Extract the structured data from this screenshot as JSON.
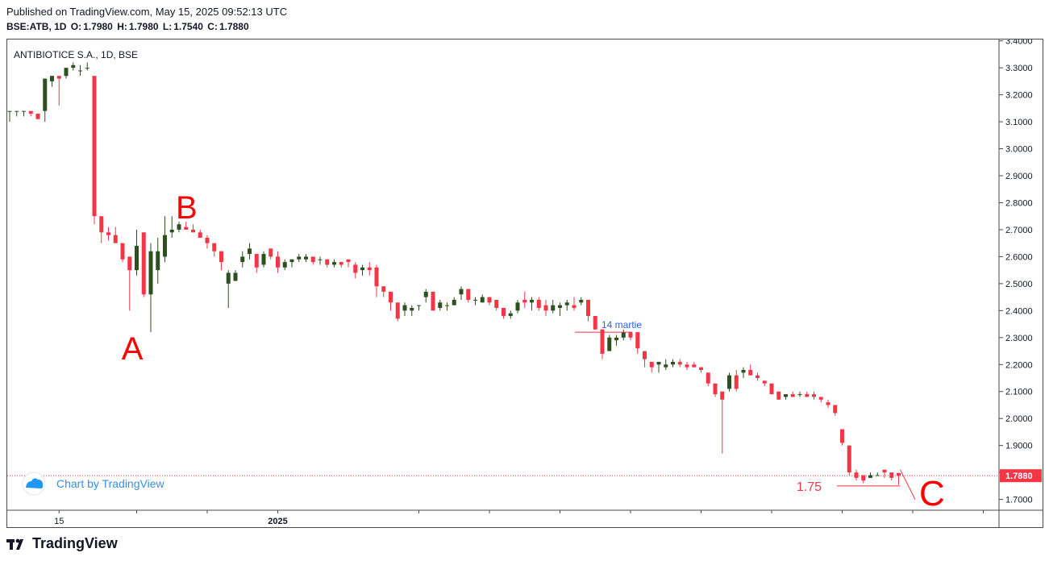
{
  "header": {
    "published": "Published on TradingView.com, May 15, 2025 09:52:13 UTC",
    "ohlc": {
      "symbol": "BSE:ATB, 1D",
      "open_label": "O:",
      "open": "1.7980",
      "high_label": "H:",
      "high": "1.7980",
      "low_label": "L:",
      "low": "1.7540",
      "close_label": "C:",
      "close": "1.7880"
    }
  },
  "chart_title": "ANTIBIOTICE S.A., 1D, BSE",
  "watermark": "Chart by TradingView",
  "footer_brand": "TradingView",
  "colors": {
    "up": "#2e4f1f",
    "down": "#f23645",
    "grid": "#b0b0b0",
    "last_price": "#f23645",
    "annotation_blue": "#2962ff",
    "annotation_red": "#ff0000"
  },
  "chart_data": {
    "type": "candlestick",
    "ylim": [
      1.66,
      3.405
    ],
    "y_ticks": [
      "1.7000",
      "1.8000",
      "1.9000",
      "2.0000",
      "2.1000",
      "2.2000",
      "2.3000",
      "2.4000",
      "2.5000",
      "2.6000",
      "2.7000",
      "2.8000",
      "2.9000",
      "3.0000",
      "3.1000",
      "3.2000",
      "3.3000",
      "3.4000"
    ],
    "x_ticks": [
      {
        "label": "15",
        "bar": 7
      },
      {
        "label": "",
        "bar": 18
      },
      {
        "label": "",
        "bar": 28
      },
      {
        "label": "2025",
        "bar": 38
      },
      {
        "label": "",
        "bar": 58
      },
      {
        "label": "",
        "bar": 68
      },
      {
        "label": "",
        "bar": 78
      },
      {
        "label": "",
        "bar": 88
      },
      {
        "label": "",
        "bar": 98
      },
      {
        "label": "",
        "bar": 108
      },
      {
        "label": "",
        "bar": 118
      },
      {
        "label": "",
        "bar": 128
      },
      {
        "label": "",
        "bar": 138
      }
    ],
    "last_price": 1.788,
    "last_price_label": "1.7880",
    "candles": [
      [
        3.14,
        3.14,
        3.1,
        3.14
      ],
      [
        3.14,
        3.14,
        3.12,
        3.14
      ],
      [
        3.14,
        3.14,
        3.12,
        3.14
      ],
      [
        3.14,
        3.14,
        3.12,
        3.13
      ],
      [
        3.13,
        3.13,
        3.11,
        3.11
      ],
      [
        3.14,
        3.26,
        3.1,
        3.26
      ],
      [
        3.25,
        3.27,
        3.23,
        3.27
      ],
      [
        3.27,
        3.27,
        3.16,
        3.26
      ],
      [
        3.27,
        3.3,
        3.26,
        3.3
      ],
      [
        3.3,
        3.32,
        3.29,
        3.31
      ],
      [
        3.29,
        3.31,
        3.27,
        3.29
      ],
      [
        3.3,
        3.32,
        3.29,
        3.3
      ],
      [
        3.27,
        3.27,
        2.72,
        2.75
      ],
      [
        2.75,
        2.75,
        2.65,
        2.69
      ],
      [
        2.69,
        2.71,
        2.66,
        2.68
      ],
      [
        2.68,
        2.71,
        2.66,
        2.65
      ],
      [
        2.65,
        2.65,
        2.58,
        2.59
      ],
      [
        2.6,
        2.6,
        2.4,
        2.55
      ],
      [
        2.55,
        2.7,
        2.53,
        2.64
      ],
      [
        2.69,
        2.69,
        2.45,
        2.46
      ],
      [
        2.46,
        2.65,
        2.32,
        2.62
      ],
      [
        2.55,
        2.67,
        2.5,
        2.62
      ],
      [
        2.6,
        2.75,
        2.58,
        2.68
      ],
      [
        2.69,
        2.75,
        2.67,
        2.7
      ],
      [
        2.7,
        2.73,
        2.69,
        2.72
      ],
      [
        2.71,
        2.73,
        2.7,
        2.7
      ],
      [
        2.7,
        2.72,
        2.69,
        2.69
      ],
      [
        2.69,
        2.7,
        2.67,
        2.67
      ],
      [
        2.67,
        2.68,
        2.63,
        2.65
      ],
      [
        2.65,
        2.65,
        2.6,
        2.62
      ],
      [
        2.62,
        2.62,
        2.55,
        2.58
      ],
      [
        2.5,
        2.55,
        2.41,
        2.54
      ],
      [
        2.51,
        2.55,
        2.51,
        2.54
      ],
      [
        2.58,
        2.62,
        2.56,
        2.6
      ],
      [
        2.61,
        2.65,
        2.59,
        2.63
      ],
      [
        2.61,
        2.61,
        2.54,
        2.56
      ],
      [
        2.57,
        2.62,
        2.56,
        2.61
      ],
      [
        2.63,
        2.63,
        2.59,
        2.6
      ],
      [
        2.6,
        2.62,
        2.54,
        2.56
      ],
      [
        2.56,
        2.59,
        2.55,
        2.58
      ],
      [
        2.58,
        2.59,
        2.56,
        2.59
      ],
      [
        2.59,
        2.61,
        2.58,
        2.6
      ],
      [
        2.59,
        2.61,
        2.58,
        2.6
      ],
      [
        2.6,
        2.6,
        2.57,
        2.58
      ],
      [
        2.59,
        2.6,
        2.57,
        2.59
      ],
      [
        2.59,
        2.59,
        2.56,
        2.57
      ],
      [
        2.57,
        2.59,
        2.56,
        2.58
      ],
      [
        2.58,
        2.58,
        2.56,
        2.57
      ],
      [
        2.59,
        2.59,
        2.56,
        2.58
      ],
      [
        2.57,
        2.58,
        2.52,
        2.54
      ],
      [
        2.55,
        2.57,
        2.53,
        2.56
      ],
      [
        2.56,
        2.58,
        2.53,
        2.55
      ],
      [
        2.56,
        2.57,
        2.45,
        2.49
      ],
      [
        2.49,
        2.49,
        2.45,
        2.47
      ],
      [
        2.47,
        2.47,
        2.4,
        2.43
      ],
      [
        2.43,
        2.43,
        2.36,
        2.37
      ],
      [
        2.4,
        2.43,
        2.38,
        2.42
      ],
      [
        2.4,
        2.42,
        2.38,
        2.41
      ],
      [
        2.42,
        2.42,
        2.4,
        2.42
      ],
      [
        2.45,
        2.48,
        2.43,
        2.47
      ],
      [
        2.47,
        2.47,
        2.4,
        2.4
      ],
      [
        2.41,
        2.44,
        2.4,
        2.43
      ],
      [
        2.42,
        2.43,
        2.4,
        2.42
      ],
      [
        2.42,
        2.45,
        2.42,
        2.44
      ],
      [
        2.46,
        2.49,
        2.44,
        2.48
      ],
      [
        2.48,
        2.48,
        2.43,
        2.44
      ],
      [
        2.44,
        2.45,
        2.42,
        2.44
      ],
      [
        2.43,
        2.46,
        2.43,
        2.45
      ],
      [
        2.45,
        2.45,
        2.42,
        2.43
      ],
      [
        2.44,
        2.44,
        2.4,
        2.41
      ],
      [
        2.41,
        2.41,
        2.37,
        2.38
      ],
      [
        2.38,
        2.4,
        2.37,
        2.39
      ],
      [
        2.4,
        2.44,
        2.39,
        2.43
      ],
      [
        2.44,
        2.47,
        2.41,
        2.43
      ],
      [
        2.43,
        2.45,
        2.4,
        2.44
      ],
      [
        2.44,
        2.45,
        2.4,
        2.41
      ],
      [
        2.42,
        2.44,
        2.38,
        2.4
      ],
      [
        2.4,
        2.44,
        2.39,
        2.42
      ],
      [
        2.41,
        2.43,
        2.38,
        2.42
      ],
      [
        2.42,
        2.44,
        2.4,
        2.43
      ],
      [
        2.42,
        2.45,
        2.4,
        2.41
      ],
      [
        2.43,
        2.45,
        2.42,
        2.44
      ],
      [
        2.44,
        2.44,
        2.36,
        2.38
      ],
      [
        2.38,
        2.38,
        2.33,
        2.33
      ],
      [
        2.33,
        2.33,
        2.22,
        2.24
      ],
      [
        2.25,
        2.31,
        2.25,
        2.3
      ],
      [
        2.29,
        2.31,
        2.27,
        2.3
      ],
      [
        2.3,
        2.33,
        2.29,
        2.32
      ],
      [
        2.32,
        2.32,
        2.29,
        2.3
      ],
      [
        2.32,
        2.32,
        2.24,
        2.26
      ],
      [
        2.25,
        2.25,
        2.19,
        2.22
      ],
      [
        2.21,
        2.21,
        2.17,
        2.19
      ],
      [
        2.2,
        2.21,
        2.17,
        2.21
      ],
      [
        2.19,
        2.22,
        2.18,
        2.2
      ],
      [
        2.2,
        2.22,
        2.19,
        2.21
      ],
      [
        2.21,
        2.22,
        2.19,
        2.2
      ],
      [
        2.2,
        2.21,
        2.18,
        2.19
      ],
      [
        2.2,
        2.21,
        2.19,
        2.19
      ],
      [
        2.19,
        2.19,
        2.17,
        2.18
      ],
      [
        2.17,
        2.17,
        2.12,
        2.13
      ],
      [
        2.13,
        2.13,
        2.08,
        2.09
      ],
      [
        2.1,
        2.1,
        1.87,
        2.07
      ],
      [
        2.11,
        2.17,
        2.1,
        2.16
      ],
      [
        2.16,
        2.18,
        2.1,
        2.11
      ],
      [
        2.17,
        2.19,
        2.15,
        2.18
      ],
      [
        2.18,
        2.2,
        2.16,
        2.16
      ],
      [
        2.16,
        2.17,
        2.14,
        2.15
      ],
      [
        2.14,
        2.14,
        2.12,
        2.13
      ],
      [
        2.13,
        2.13,
        2.09,
        2.09
      ],
      [
        2.1,
        2.1,
        2.07,
        2.07
      ],
      [
        2.08,
        2.09,
        2.07,
        2.09
      ],
      [
        2.09,
        2.1,
        2.08,
        2.08
      ],
      [
        2.09,
        2.1,
        2.08,
        2.09
      ],
      [
        2.09,
        2.1,
        2.08,
        2.08
      ],
      [
        2.09,
        2.1,
        2.07,
        2.08
      ],
      [
        2.08,
        2.08,
        2.06,
        2.07
      ],
      [
        2.06,
        2.07,
        2.04,
        2.05
      ],
      [
        2.05,
        2.05,
        2.01,
        2.02
      ],
      [
        1.96,
        1.96,
        1.9,
        1.91
      ],
      [
        1.9,
        1.9,
        1.79,
        1.8
      ],
      [
        1.8,
        1.81,
        1.77,
        1.78
      ],
      [
        1.79,
        1.79,
        1.76,
        1.77
      ],
      [
        1.78,
        1.8,
        1.78,
        1.79
      ],
      [
        1.79,
        1.8,
        1.79,
        1.79
      ],
      [
        1.81,
        1.81,
        1.78,
        1.8
      ],
      [
        1.8,
        1.8,
        1.77,
        1.78
      ],
      [
        1.798,
        1.798,
        1.754,
        1.788
      ]
    ],
    "annotations": {
      "label_A": "A",
      "label_B": "B",
      "label_C": "C",
      "note_march": "14 martie",
      "note_support": "1.75"
    }
  }
}
